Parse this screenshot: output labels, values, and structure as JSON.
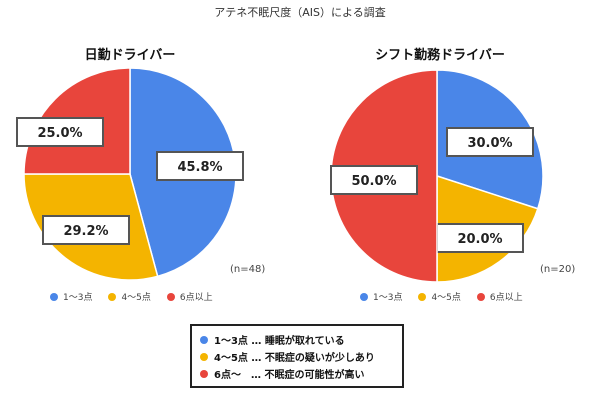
{
  "chart_data": {
    "title": "アテネ不眠尺度（AIS）による調査",
    "charts": [
      {
        "type": "pie",
        "title": "日勤ドライバー",
        "n_label": "(n=48)",
        "slices": [
          {
            "name": "1〜3点",
            "value": 45.8,
            "label": "45.8%",
            "color": "#4a86e8"
          },
          {
            "name": "4〜5点",
            "value": 29.2,
            "label": "29.2%",
            "color": "#f4b400"
          },
          {
            "name": "6点以上",
            "value": 25.0,
            "label": "25.0%",
            "color": "#e8453c"
          }
        ]
      },
      {
        "type": "pie",
        "title": "シフト勤務ドライバー",
        "n_label": "(n=20)",
        "slices": [
          {
            "name": "1〜3点",
            "value": 30.0,
            "label": "30.0%",
            "color": "#4a86e8"
          },
          {
            "name": "4〜5点",
            "value": 20.0,
            "label": "20.0%",
            "color": "#f4b400"
          },
          {
            "name": "6点以上",
            "value": 50.0,
            "label": "50.0%",
            "color": "#e8453c"
          }
        ]
      }
    ],
    "legend": [
      "1〜3点",
      "4〜5点",
      "6点以上"
    ]
  },
  "key": {
    "rows": [
      {
        "text": "1〜3点 … 睡眠が取れている",
        "color": "#4a86e8"
      },
      {
        "text": "4〜5点 … 不眠症の疑いが少しあり",
        "color": "#f4b400"
      },
      {
        "text": "6点〜　… 不眠症の可能性が高い",
        "color": "#e8453c"
      }
    ]
  }
}
